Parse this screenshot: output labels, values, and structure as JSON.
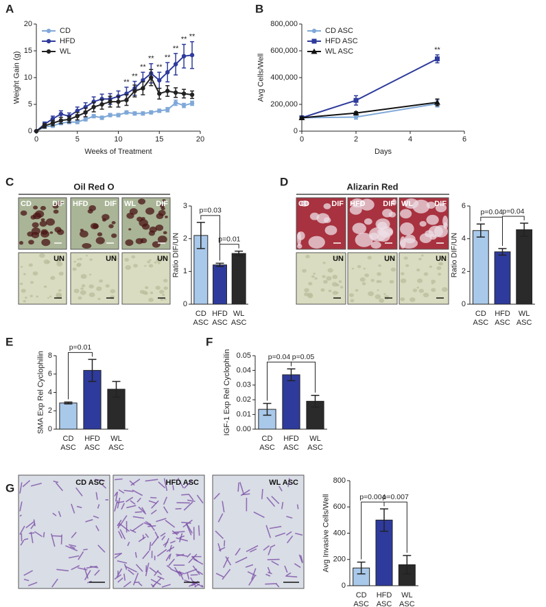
{
  "chart_data": [
    {
      "type": "line",
      "panel": "A",
      "ylabel": "Weight Gain (g)",
      "xlabel": "Weeks of Treatment",
      "x": [
        0,
        1,
        2,
        3,
        4,
        5,
        6,
        7,
        8,
        9,
        10,
        11,
        12,
        13,
        14,
        15,
        16,
        17,
        18,
        19
      ],
      "xlim": [
        0,
        20
      ],
      "xticks": [
        0,
        5,
        10,
        15,
        20
      ],
      "ylim": [
        0,
        20
      ],
      "yticks": [
        0,
        5,
        10,
        15,
        20
      ],
      "legend": "upper left",
      "series": [
        {
          "name": "CD",
          "color": "#7fa8d8",
          "marker": "circle",
          "values": [
            0,
            0.8,
            1.0,
            1.5,
            1.7,
            1.7,
            2.2,
            2.8,
            2.5,
            3.0,
            3.0,
            3.5,
            3.3,
            3.3,
            3.5,
            3.8,
            4.0,
            5.3,
            4.8,
            5.2
          ],
          "errors": [
            0,
            0.3,
            0.3,
            0.3,
            0.3,
            0.3,
            0.3,
            0.3,
            0.3,
            0.3,
            0.3,
            0.3,
            0.3,
            0.3,
            0.3,
            0.3,
            0.4,
            0.5,
            0.4,
            0.4
          ]
        },
        {
          "name": "HFD",
          "color": "#2e3b9c",
          "marker": "circle",
          "values": [
            0,
            1.3,
            2.3,
            3.2,
            2.8,
            3.8,
            4.5,
            5.5,
            6.0,
            6.0,
            6.5,
            7.0,
            8.0,
            9.5,
            10.8,
            9.5,
            11.0,
            12.5,
            14.0,
            14.2
          ],
          "errors": [
            0,
            0.4,
            0.5,
            0.6,
            0.6,
            0.7,
            0.8,
            0.9,
            0.9,
            1.0,
            1.0,
            1.2,
            1.3,
            1.5,
            1.8,
            1.5,
            1.8,
            2.0,
            2.2,
            2.5
          ]
        },
        {
          "name": "WL",
          "color": "#222222",
          "marker": "circle",
          "values": [
            0,
            1.0,
            1.5,
            2.0,
            2.2,
            2.8,
            3.5,
            4.5,
            5.0,
            5.5,
            5.5,
            5.8,
            7.5,
            8.0,
            10.0,
            7.0,
            7.5,
            7.2,
            7.0,
            6.8
          ],
          "errors": [
            0,
            0.4,
            0.5,
            0.6,
            0.6,
            0.7,
            0.8,
            0.9,
            0.9,
            1.0,
            1.0,
            1.0,
            1.1,
            1.2,
            1.5,
            1.0,
            1.0,
            0.9,
            0.8,
            0.7
          ]
        }
      ],
      "significance": {
        "label": "**",
        "x": [
          11,
          12,
          13,
          14,
          15,
          16,
          17,
          18,
          19
        ]
      }
    },
    {
      "type": "line",
      "panel": "B",
      "ylabel": "Avg Cells/Well",
      "xlabel": "Days",
      "x": [
        0,
        2,
        5
      ],
      "xlim": [
        0,
        6
      ],
      "xticks": [
        0,
        2,
        4,
        6
      ],
      "ylim": [
        0,
        800000
      ],
      "yticks": [
        0,
        {
          "value": 200000,
          "label": "200,000"
        },
        {
          "value": 400000,
          "label": "400,000"
        },
        {
          "value": 600000,
          "label": "600,000"
        },
        {
          "value": 800000,
          "label": "800,000"
        }
      ],
      "legend": "upper left",
      "series": [
        {
          "name": "CD ASC",
          "color": "#7fa8d8",
          "marker": "circle",
          "values": [
            100000,
            105000,
            205000
          ],
          "errors": [
            5000,
            15000,
            25000
          ]
        },
        {
          "name": "HFD ASC",
          "color": "#2e3b9c",
          "marker": "square",
          "values": [
            100000,
            230000,
            540000
          ],
          "errors": [
            5000,
            35000,
            30000
          ]
        },
        {
          "name": "WL ASC",
          "color": "#111111",
          "marker": "triangle",
          "values": [
            100000,
            135000,
            215000
          ],
          "errors": [
            5000,
            10000,
            25000
          ]
        }
      ],
      "significance": {
        "label": "**",
        "x": [
          5
        ]
      }
    },
    {
      "type": "bar",
      "panel": "C",
      "image_title": "Oil Red O",
      "image_style": "oil",
      "image_labels": {
        "top": [
          [
            "CD",
            "DIF"
          ],
          [
            "HFD",
            "DIF"
          ],
          [
            "WL",
            "DIF"
          ]
        ],
        "bottom": [
          "UN",
          "UN",
          "UN"
        ]
      },
      "ylabel": "Ratio DIF/UN",
      "categories": [
        "CD ASC",
        "HFD ASC",
        "WL ASC"
      ],
      "colors": [
        "#a9c9ea",
        "#2e3b9c",
        "#2a2a2a"
      ],
      "values": [
        2.1,
        1.2,
        1.55
      ],
      "errors": [
        0.4,
        0.05,
        0.07
      ],
      "ylim": [
        0,
        3
      ],
      "yticks": [
        0,
        1,
        2,
        3
      ],
      "comparisons": [
        {
          "pair": [
            0,
            1
          ],
          "label": "p=0.03"
        },
        {
          "pair": [
            1,
            2
          ],
          "label": "p=0.01"
        }
      ]
    },
    {
      "type": "bar",
      "panel": "D",
      "image_title": "Alizarin Red",
      "image_style": "alizarin",
      "image_labels": {
        "top": [
          [
            "CD",
            "DIF"
          ],
          [
            "HFD",
            "DIF"
          ],
          [
            "WL",
            "DIF"
          ]
        ],
        "bottom": [
          "UN",
          "UN",
          "UN"
        ]
      },
      "ylabel": "Ratio DIF/UN",
      "categories": [
        "CD ASC",
        "HFD ASC",
        "WL ASC"
      ],
      "colors": [
        "#a9c9ea",
        "#2e3b9c",
        "#2a2a2a"
      ],
      "values": [
        4.5,
        3.2,
        4.55
      ],
      "errors": [
        0.4,
        0.2,
        0.4
      ],
      "ylim": [
        0,
        6
      ],
      "yticks": [
        0,
        2,
        4,
        6
      ],
      "comparisons": [
        {
          "pair": [
            0,
            1
          ],
          "label": "p=0.04"
        },
        {
          "pair": [
            1,
            2
          ],
          "label": "p=0.04"
        }
      ]
    },
    {
      "type": "bar",
      "panel": "E",
      "ylabel": "SMA Exp Rel Cyclophilin",
      "categories": [
        "CD ASC",
        "HFD ASC",
        "WL ASC"
      ],
      "colors": [
        "#a9c9ea",
        "#2e3b9c",
        "#2a2a2a"
      ],
      "values": [
        2.85,
        6.4,
        4.35
      ],
      "errors": [
        0.1,
        1.2,
        0.85
      ],
      "ylim": [
        0,
        8
      ],
      "yticks": [
        0,
        2,
        4,
        6,
        8
      ],
      "comparisons": [
        {
          "pair": [
            0,
            1
          ],
          "label": "p=0.01"
        }
      ]
    },
    {
      "type": "bar",
      "panel": "F",
      "ylabel": "IGF-1 Exp Rel Cyclophilin",
      "categories": [
        "CD ASC",
        "HFD ASC",
        "WL ASC"
      ],
      "colors": [
        "#a9c9ea",
        "#2e3b9c",
        "#2a2a2a"
      ],
      "values": [
        0.0135,
        0.037,
        0.019
      ],
      "errors": [
        0.004,
        0.004,
        0.004
      ],
      "ylim": [
        0,
        0.05
      ],
      "yticks": [
        {
          "value": 0,
          "label": "0.00"
        },
        0.01,
        0.02,
        0.03,
        0.04,
        0.05
      ],
      "comparisons": [
        {
          "pair": [
            0,
            1
          ],
          "label": "p=0.04"
        },
        {
          "pair": [
            1,
            2
          ],
          "label": "p=0.05"
        }
      ]
    },
    {
      "type": "bar",
      "panel": "G",
      "image_style": "invasion",
      "image_labels": {
        "top": [
          "CD ASC",
          "HFD ASC",
          "WL ASC"
        ]
      },
      "ylabel": "Avg Invasive Cells/Well",
      "categories": [
        "CD ASC",
        "HFD ASC",
        "WL ASC"
      ],
      "colors": [
        "#a9c9ea",
        "#2e3b9c",
        "#2a2a2a"
      ],
      "values": [
        135,
        500,
        160
      ],
      "errors": [
        45,
        85,
        70
      ],
      "ylim": [
        0,
        800
      ],
      "yticks": [
        0,
        200,
        400,
        600,
        800
      ],
      "comparisons": [
        {
          "pair": [
            0,
            1
          ],
          "label": "p=0.004"
        },
        {
          "pair": [
            1,
            2
          ],
          "label": "p=0.007"
        }
      ]
    }
  ]
}
